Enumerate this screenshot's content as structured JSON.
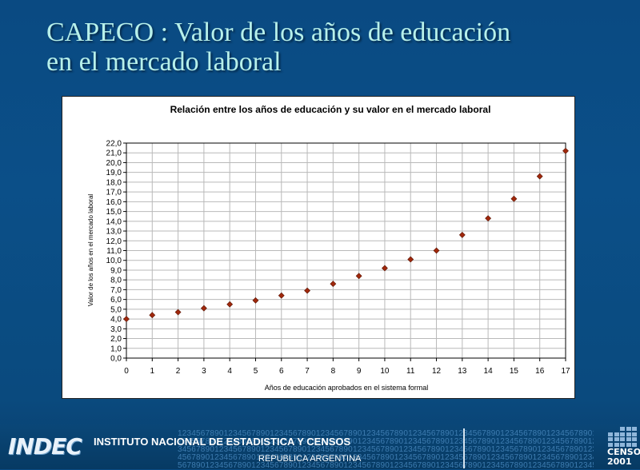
{
  "slide": {
    "title_line1": "CAPECO : Valor de los años de educación",
    "title_line2": "en el mercado laboral"
  },
  "chart_data": {
    "type": "scatter",
    "title": "Relación entre los años de educación y su valor en el mercado laboral",
    "xlabel": "Años de educación aprobados en el sistema formal",
    "ylabel": "Valor de los años en el mercado laboral",
    "xlim": [
      0,
      17
    ],
    "ylim": [
      0,
      22
    ],
    "x_ticks": [
      0,
      1,
      2,
      3,
      4,
      5,
      6,
      7,
      8,
      9,
      10,
      11,
      12,
      13,
      14,
      15,
      16,
      17
    ],
    "y_ticks": [
      "0,0",
      "1,0",
      "2,0",
      "3,0",
      "4,0",
      "5,0",
      "6,0",
      "7,0",
      "8,0",
      "9,0",
      "10,0",
      "11,0",
      "12,0",
      "13,0",
      "14,0",
      "15,0",
      "16,0",
      "17,0",
      "18,0",
      "19,0",
      "20,0",
      "21,0",
      "22,0"
    ],
    "grid": true,
    "marker_color": "#a0280c",
    "series": [
      {
        "x": [
          0,
          1,
          2,
          3,
          4,
          5,
          6,
          7,
          8,
          9,
          10,
          11,
          12,
          13,
          14,
          15,
          16,
          17
        ],
        "y": [
          4.0,
          4.4,
          4.7,
          5.1,
          5.5,
          5.9,
          6.4,
          6.9,
          7.6,
          8.4,
          9.2,
          10.1,
          11.0,
          12.6,
          14.3,
          16.3,
          18.6,
          21.2
        ]
      }
    ]
  },
  "footer": {
    "logo_text": "INDEC",
    "institution": "INSTITUTO NACIONAL DE ESTADISTICA Y CENSOS",
    "republic": "REPUBLICA ARGENTINA",
    "pattern_digits": "1234567890",
    "censo_logo_text": "CENSO 2001"
  }
}
